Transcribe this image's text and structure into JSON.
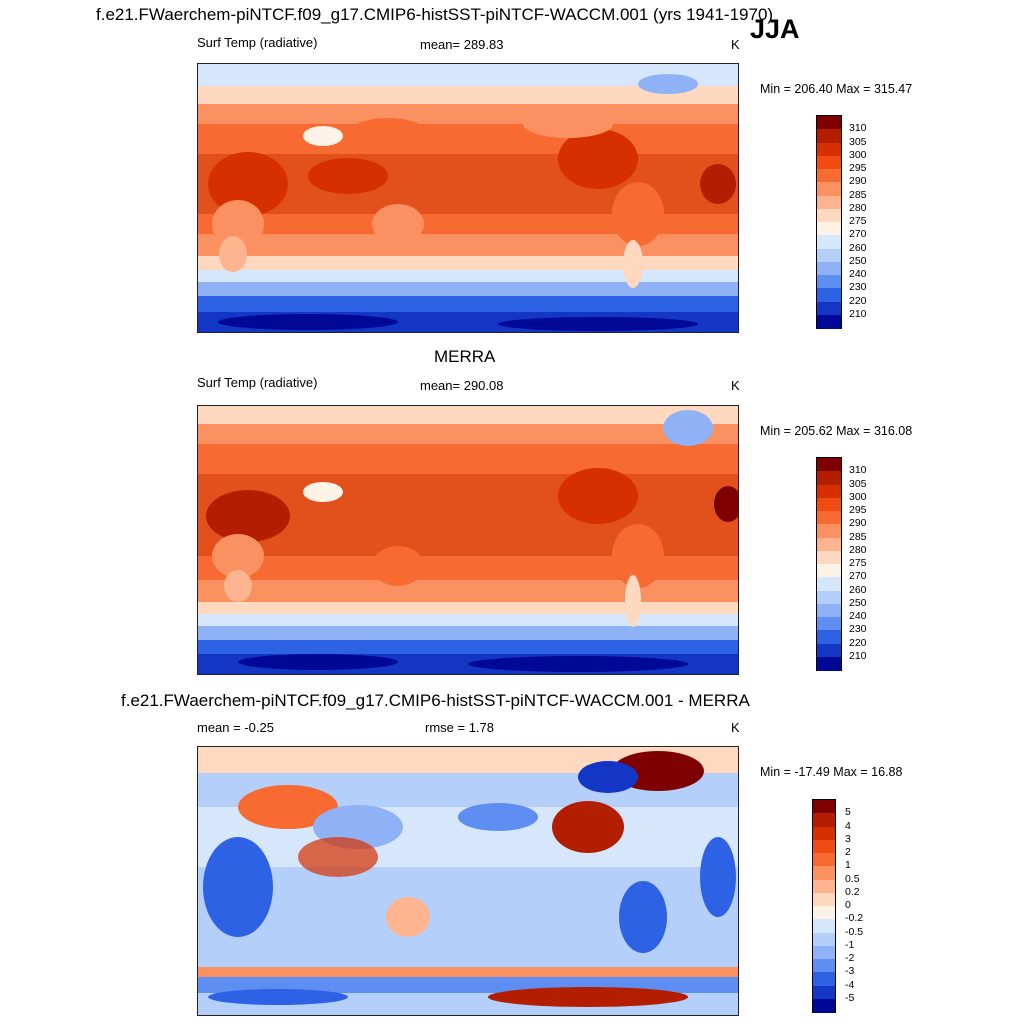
{
  "header": {
    "title": "f.e21.FWaerchem-piNTCF.f09_g17.CMIP6-histSST-piNTCF-WACCM.001 (yrs 1941-1970)",
    "season": "JJA"
  },
  "panels": [
    {
      "id": "model",
      "title": "",
      "left_label": "Surf Temp (radiative)",
      "center_label": "mean= 289.83",
      "units": "K",
      "minmax": "Min = 206.40 Max = 315.47",
      "colorbar": "abs"
    },
    {
      "id": "obs",
      "title": "MERRA",
      "left_label": "Surf Temp (radiative)",
      "center_label": "mean= 290.08",
      "units": "K",
      "minmax": "Min = 205.62 Max = 316.08",
      "colorbar": "abs"
    },
    {
      "id": "diff",
      "title": "f.e21.FWaerchem-piNTCF.f09_g17.CMIP6-histSST-piNTCF-WACCM.001 - MERRA",
      "left_label": "mean =  -0.25",
      "center_label": "rmse =   1.78",
      "units": "K",
      "minmax": "Min = -17.49 Max =  16.88",
      "colorbar": "diff"
    }
  ],
  "colorbars": {
    "abs": {
      "labels": [
        "310",
        "305",
        "300",
        "295",
        "290",
        "285",
        "280",
        "275",
        "270",
        "260",
        "250",
        "240",
        "230",
        "220",
        "210"
      ],
      "colors": [
        "#7f0000",
        "#b31d00",
        "#d63000",
        "#ef4b12",
        "#f76a32",
        "#fb9060",
        "#fdb48f",
        "#fed8bf",
        "#fdf2e6",
        "#d6e6fb",
        "#b4cffa",
        "#8fb2f7",
        "#5e8ef1",
        "#2e62e4",
        "#1436c4",
        "#000896"
      ]
    },
    "diff": {
      "labels": [
        "5",
        "4",
        "3",
        "2",
        "1",
        "0.5",
        "0.2",
        "0",
        "-0.2",
        "-0.5",
        "-1",
        "-2",
        "-3",
        "-4",
        "-5"
      ],
      "colors": [
        "#7f0000",
        "#b31d00",
        "#d63000",
        "#ef4b12",
        "#f76a32",
        "#fb9060",
        "#fdb48f",
        "#fed8bf",
        "#fdf2e6",
        "#d6e6fb",
        "#b4cffa",
        "#8fb2f7",
        "#5e8ef1",
        "#2e62e4",
        "#1436c4",
        "#000896"
      ]
    }
  },
  "map_colors": {
    "ocean_warm": "#e2501c",
    "ocean_hot": "#d63000",
    "mid": "#f7804a",
    "cool": "#fdb48f",
    "cold1": "#fed8bf",
    "ice1": "#d6e6fb",
    "ice2": "#8fb2f7",
    "ice3": "#2e62e4",
    "ice4": "#000896",
    "diff_bg": "#b4cffa",
    "diff_pos": "#d63000",
    "diff_neg": "#2e62e4"
  }
}
